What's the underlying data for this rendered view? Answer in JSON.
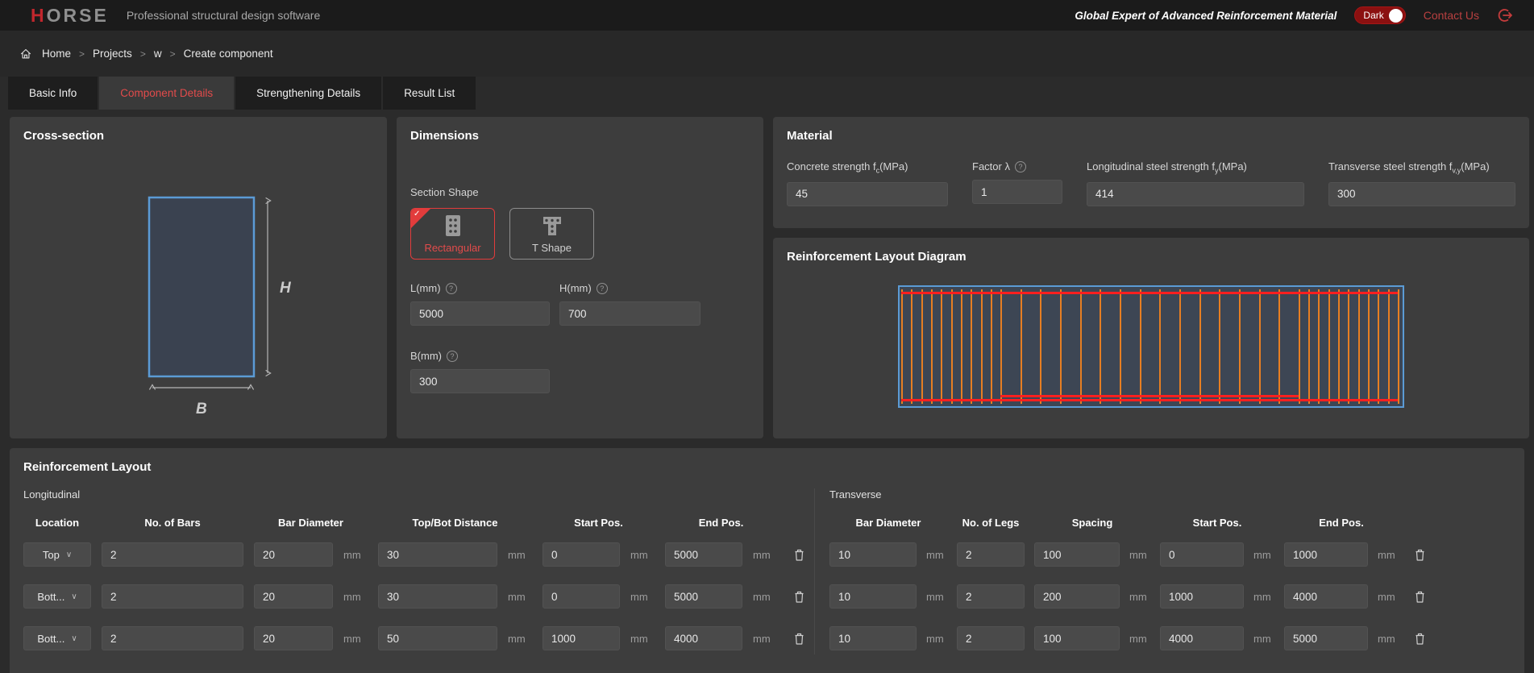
{
  "header": {
    "logo_first": "H",
    "logo_rest": "ORSE",
    "tagline": "Professional structural design software",
    "slogan": "Global Expert of Advanced Reinforcement Material",
    "theme_toggle_label": "Dark",
    "contact_label": "Contact Us"
  },
  "breadcrumb": {
    "items": [
      "Home",
      "Projects",
      "w",
      "Create component"
    ]
  },
  "tabs": [
    {
      "label": "Basic Info"
    },
    {
      "label": "Component Details",
      "active": true
    },
    {
      "label": "Strengthening Details"
    },
    {
      "label": "Result List"
    }
  ],
  "cross_section": {
    "title": "Cross-section",
    "height_label": "H",
    "width_label": "B"
  },
  "dimensions": {
    "title": "Dimensions",
    "section_shape_label": "Section Shape",
    "shapes": [
      {
        "label": "Rectangular",
        "selected": true
      },
      {
        "label": "T Shape",
        "selected": false
      }
    ],
    "fields": {
      "L": {
        "label": "L(mm)",
        "value": "5000"
      },
      "H": {
        "label": "H(mm)",
        "value": "700"
      },
      "B": {
        "label": "B(mm)",
        "value": "300"
      }
    }
  },
  "material": {
    "title": "Material",
    "fields": [
      {
        "label_pre": "Concrete strength f",
        "label_sub": "c",
        "label_post": "(MPa)",
        "value": "45"
      },
      {
        "label_pre": "Factor λ",
        "label_sub": "",
        "label_post": "",
        "value": "1",
        "has_help": true
      },
      {
        "label_pre": "Longitudinal steel strength f",
        "label_sub": "y",
        "label_post": "(MPa)",
        "value": "414"
      },
      {
        "label_pre": "Transverse steel strength f",
        "label_sub": "v,y",
        "label_post": "(MPa)",
        "value": "300"
      }
    ]
  },
  "diagram": {
    "title": "Reinforcement Layout Diagram",
    "beam_length_mm": 5000,
    "beam_depth_mm": 700
  },
  "layout": {
    "title": "Reinforcement Layout",
    "unit": "mm",
    "longitudinal": {
      "label": "Longitudinal",
      "headers": [
        "Location",
        "No. of Bars",
        "Bar Diameter",
        "Top/Bot Distance",
        "Start Pos.",
        "End Pos."
      ],
      "rows": [
        {
          "location": "Top",
          "bars": "2",
          "diameter": "20",
          "distance": "30",
          "start": "0",
          "end": "5000"
        },
        {
          "location": "Bott...",
          "bars": "2",
          "diameter": "20",
          "distance": "30",
          "start": "0",
          "end": "5000"
        },
        {
          "location": "Bott...",
          "bars": "2",
          "diameter": "20",
          "distance": "50",
          "start": "1000",
          "end": "4000"
        }
      ]
    },
    "transverse": {
      "label": "Transverse",
      "headers": [
        "Bar Diameter",
        "No. of Legs",
        "Spacing",
        "Start Pos.",
        "End Pos."
      ],
      "rows": [
        {
          "diameter": "10",
          "legs": "2",
          "spacing": "100",
          "start": "0",
          "end": "1000"
        },
        {
          "diameter": "10",
          "legs": "2",
          "spacing": "200",
          "start": "1000",
          "end": "4000"
        },
        {
          "diameter": "10",
          "legs": "2",
          "spacing": "100",
          "start": "4000",
          "end": "5000"
        }
      ]
    }
  },
  "colors": {
    "accent_red": "#e04040",
    "section_outline_blue": "#5b9bd5",
    "stirrup_orange": "#e67e22",
    "rebar_red": "#ff1f1f",
    "dark_toggle_red": "#8b1010"
  }
}
